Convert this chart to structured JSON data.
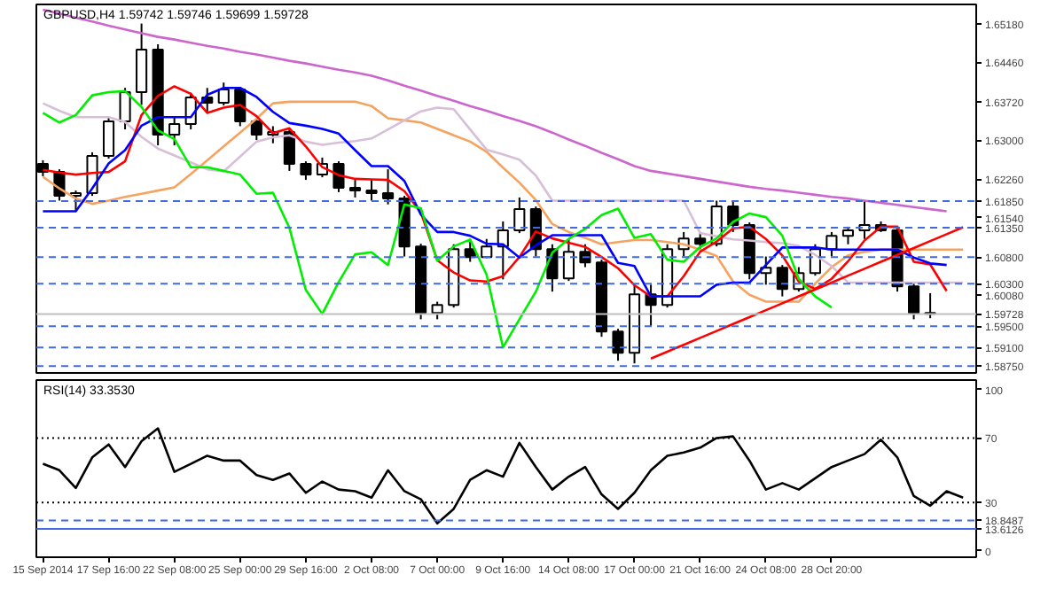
{
  "chart_data": [
    {
      "type": "candlestick",
      "title": "GBPUSD,H4 1.59742 1.59746 1.59699 1.59728",
      "categories": [
        null,
        null,
        null,
        null,
        null,
        null,
        null,
        null,
        null,
        null,
        null,
        null,
        null,
        null,
        null,
        null,
        null,
        null,
        null,
        null,
        null,
        null,
        null,
        null,
        null,
        null,
        null,
        null,
        null,
        null,
        null,
        null,
        null,
        null,
        null,
        null,
        null,
        null,
        null,
        null,
        null,
        null,
        null,
        null,
        null,
        null,
        null,
        null,
        null,
        null,
        null,
        null,
        null,
        null,
        null,
        null,
        null
      ],
      "ohlc": [
        [
          1.6255,
          1.6262,
          1.6232,
          1.624
        ],
        [
          1.624,
          1.6245,
          1.6186,
          1.6195
        ],
        [
          1.6195,
          1.6205,
          1.6166,
          1.62
        ],
        [
          1.62,
          1.6277,
          1.6195,
          1.627
        ],
        [
          1.627,
          1.6343,
          1.6265,
          1.6335
        ],
        [
          1.6335,
          1.6398,
          1.632,
          1.639
        ],
        [
          1.639,
          1.6519,
          1.6366,
          1.647
        ],
        [
          1.647,
          1.648,
          1.629,
          1.631
        ],
        [
          1.631,
          1.6343,
          1.629,
          1.633
        ],
        [
          1.633,
          1.6389,
          1.632,
          1.638
        ],
        [
          1.638,
          1.6398,
          1.635,
          1.637
        ],
        [
          1.637,
          1.6408,
          1.6365,
          1.6395
        ],
        [
          1.6395,
          1.64,
          1.6326,
          1.6335
        ],
        [
          1.6335,
          1.634,
          1.63,
          1.631
        ],
        [
          1.631,
          1.6326,
          1.6294,
          1.6315
        ],
        [
          1.6315,
          1.632,
          1.6242,
          1.6255
        ],
        [
          1.6255,
          1.626,
          1.6225,
          1.6235
        ],
        [
          1.6235,
          1.6267,
          1.623,
          1.6255
        ],
        [
          1.6255,
          1.626,
          1.6202,
          1.621
        ],
        [
          1.621,
          1.6225,
          1.6192,
          1.6205
        ],
        [
          1.6205,
          1.6225,
          1.6186,
          1.62
        ],
        [
          1.62,
          1.6245,
          1.6179,
          1.619
        ],
        [
          1.619,
          1.6195,
          1.6081,
          1.61
        ],
        [
          1.61,
          1.6105,
          1.5963,
          1.5975
        ],
        [
          1.5975,
          1.5996,
          1.5963,
          1.599
        ],
        [
          1.599,
          1.6104,
          1.5985,
          1.6095
        ],
        [
          1.6095,
          1.6114,
          1.6071,
          1.608
        ],
        [
          1.608,
          1.6114,
          1.6078,
          1.61
        ],
        [
          1.61,
          1.6147,
          1.6038,
          1.613
        ],
        [
          1.613,
          1.6192,
          1.6125,
          1.617
        ],
        [
          1.617,
          1.6175,
          1.6081,
          1.6095
        ],
        [
          1.6095,
          1.6104,
          1.6015,
          1.604
        ],
        [
          1.604,
          1.6114,
          1.6035,
          1.609
        ],
        [
          1.609,
          1.6104,
          1.6061,
          1.607
        ],
        [
          1.607,
          1.6075,
          1.593,
          1.594
        ],
        [
          1.594,
          1.5945,
          1.5885,
          1.59
        ],
        [
          1.59,
          1.6028,
          1.588,
          1.601
        ],
        [
          1.601,
          1.6028,
          1.595,
          1.599
        ],
        [
          1.599,
          1.6104,
          1.5985,
          1.6095
        ],
        [
          1.6095,
          1.6127,
          1.6081,
          1.6115
        ],
        [
          1.6115,
          1.6127,
          1.6094,
          1.6105
        ],
        [
          1.6105,
          1.6186,
          1.61,
          1.6175
        ],
        [
          1.6175,
          1.6186,
          1.6127,
          1.614
        ],
        [
          1.614,
          1.6145,
          1.6038,
          1.605
        ],
        [
          1.605,
          1.6081,
          1.6028,
          1.606
        ],
        [
          1.606,
          1.6065,
          1.6006,
          1.602
        ],
        [
          1.602,
          1.6061,
          1.6015,
          1.605
        ],
        [
          1.605,
          1.6104,
          1.6045,
          1.6095
        ],
        [
          1.6095,
          1.6127,
          1.6081,
          1.612
        ],
        [
          1.612,
          1.6137,
          1.6104,
          1.613
        ],
        [
          1.613,
          1.6186,
          1.6114,
          1.614
        ],
        [
          1.614,
          1.6147,
          1.6127,
          1.613
        ],
        [
          1.613,
          1.6137,
          1.6015,
          1.6025
        ],
        [
          1.6025,
          1.603,
          1.5963,
          1.5975
        ],
        [
          1.5975,
          1.6012,
          1.5965,
          1.5973
        ],
        null,
        null
      ],
      "series": [
        {
          "type": "line",
          "color": "#cc66cc",
          "values": [
            1.6545,
            1.6538,
            1.653,
            1.6523,
            1.6515,
            1.6508,
            1.6501,
            1.6494,
            1.6489,
            1.6483,
            1.6477,
            1.6472,
            1.6466,
            1.6461,
            1.6455,
            1.6449,
            1.6444,
            1.6438,
            1.6432,
            1.6427,
            1.6421,
            1.6412,
            1.6402,
            1.6393,
            1.6383,
            1.6374,
            1.6364,
            1.6355,
            1.6345,
            1.6336,
            1.6326,
            1.6314,
            1.6301,
            1.6289,
            1.6276,
            1.6264,
            1.6251,
            1.6242,
            1.6237,
            1.6232,
            1.6227,
            1.6222,
            1.6217,
            1.6212,
            1.6208,
            1.6205,
            1.6201,
            1.6197,
            1.6193,
            1.619,
            1.6186,
            1.6182,
            1.6178,
            1.6174,
            1.617,
            1.6166,
            null
          ]
        },
        {
          "type": "line",
          "color": "#f4a460",
          "values": [
            1.6231,
            1.6209,
            1.619,
            1.618,
            1.6186,
            1.6193,
            1.6199,
            1.6205,
            1.6211,
            1.6236,
            1.6262,
            1.6288,
            1.6314,
            1.634,
            1.6369,
            1.6372,
            1.6372,
            1.6372,
            1.6372,
            1.6372,
            1.6364,
            1.6341,
            1.6337,
            1.6333,
            1.6321,
            1.6309,
            1.6297,
            1.6278,
            1.6248,
            1.622,
            1.6187,
            1.6142,
            1.6127,
            1.6116,
            1.6104,
            1.6108,
            1.6112,
            1.6112,
            1.6108,
            1.6104,
            1.6094,
            1.6082,
            1.6034,
            1.6009,
            1.5996,
            1.5996,
            1.5996,
            1.603,
            1.6061,
            1.6083,
            1.609,
            1.6094,
            1.6094,
            1.6094,
            1.6094,
            1.6094,
            1.6094
          ]
        },
        {
          "type": "line",
          "color": "#d8bfd8",
          "values": [
            1.6369,
            1.6355,
            1.6343,
            1.6343,
            1.6343,
            1.6334,
            1.6306,
            1.6284,
            1.6271,
            1.6258,
            1.6245,
            1.6241,
            1.6269,
            1.6297,
            1.6305,
            1.6309,
            1.6297,
            1.6291,
            1.6295,
            1.6298,
            1.6303,
            1.632,
            1.6337,
            1.6354,
            1.6361,
            1.6358,
            1.632,
            1.6282,
            1.6273,
            1.6263,
            1.6233,
            1.6186,
            1.6186,
            1.6186,
            1.6186,
            1.6186,
            1.6186,
            1.6186,
            1.6186,
            1.6186,
            1.6125,
            1.6119,
            1.6113,
            1.6111,
            1.6108,
            1.6106,
            1.6101,
            1.6084,
            1.6063,
            1.6032,
            1.6032,
            1.6032,
            1.6032,
            1.6032,
            1.6032,
            1.6032,
            1.6032
          ]
        },
        {
          "type": "line",
          "color": "#ff0000",
          "values": [
            1.6244,
            1.6239,
            1.6235,
            1.6238,
            1.624,
            1.626,
            1.6347,
            1.6383,
            1.6401,
            1.6387,
            1.6351,
            1.6361,
            1.6366,
            1.6345,
            1.6313,
            1.6322,
            1.6288,
            1.6249,
            1.6234,
            1.6227,
            1.6226,
            1.6225,
            1.6204,
            1.6164,
            1.6074,
            1.6051,
            1.6036,
            1.6034,
            1.6044,
            1.608,
            1.6128,
            1.6115,
            1.6107,
            1.6099,
            1.608,
            1.6059,
            1.6027,
            1.6006,
            1.6006,
            1.6044,
            1.609,
            1.6109,
            1.6134,
            1.6137,
            1.6114,
            1.6083,
            1.6034,
            1.602,
            1.6039,
            1.6072,
            1.6111,
            1.6137,
            1.6137,
            1.6071,
            1.6066,
            1.6016,
            null
          ]
        },
        {
          "type": "line",
          "color": "#0000ff",
          "values": [
            1.6166,
            1.6166,
            1.6166,
            1.6209,
            1.6256,
            1.6281,
            1.6327,
            1.6343,
            1.6343,
            1.6343,
            1.6385,
            1.6398,
            1.6398,
            1.6381,
            1.6353,
            1.6332,
            1.6327,
            1.6321,
            1.6312,
            1.6281,
            1.6251,
            1.6251,
            1.6223,
            1.616,
            1.6127,
            1.6127,
            1.612,
            1.6105,
            1.6104,
            1.6079,
            1.6102,
            1.6121,
            1.6121,
            1.6121,
            1.6121,
            1.6069,
            1.6063,
            1.6006,
            1.6006,
            1.6006,
            1.6006,
            1.6028,
            1.6032,
            1.6032,
            1.6065,
            1.6098,
            1.6098,
            1.6098,
            1.6094,
            1.6094,
            1.6094,
            1.6094,
            1.6094,
            1.6079,
            1.6068,
            1.6065,
            null
          ]
        },
        {
          "type": "line",
          "color": "#00ee00",
          "values": [
            1.6351,
            1.6333,
            1.6347,
            1.6384,
            1.639,
            1.6392,
            1.6362,
            1.6318,
            1.6302,
            1.6249,
            1.6249,
            1.6242,
            1.6235,
            1.6199,
            1.6201,
            1.6135,
            1.6018,
            1.5973,
            1.6033,
            1.6085,
            1.6089,
            1.6065,
            1.6179,
            1.6172,
            1.6073,
            1.61,
            1.6113,
            1.6047,
            1.591,
            1.5963,
            1.6015,
            1.6088,
            1.6114,
            1.6133,
            1.6159,
            1.6171,
            1.6116,
            1.6123,
            1.6075,
            1.6071,
            1.6099,
            1.6115,
            1.6146,
            1.6162,
            1.6155,
            1.612,
            1.6039,
            1.6006,
            1.5985,
            null,
            null,
            null,
            null,
            null,
            null,
            null,
            null
          ]
        },
        {
          "type": "line",
          "color": "#ff0000",
          "values": [
            null,
            null,
            null,
            null,
            null,
            null,
            null,
            null,
            null,
            null,
            null,
            null,
            null,
            null,
            null,
            null,
            null,
            null,
            null,
            null,
            null,
            null,
            null,
            null,
            null,
            null,
            null,
            null,
            null,
            null,
            null,
            null,
            null,
            null,
            null,
            null,
            null,
            1.5889,
            1.5902,
            1.5915,
            1.5928,
            1.5941,
            1.5954,
            1.5967,
            1.598,
            1.5993,
            1.6006,
            1.6019,
            1.6032,
            1.6045,
            1.6058,
            1.6071,
            1.6084,
            1.6097,
            1.611,
            1.6123,
            1.6136
          ]
        }
      ],
      "ylim": [
        1.5862,
        1.6555
      ],
      "yticks": [
        {
          "value": 1.6518,
          "label": "1.65180"
        },
        {
          "value": 1.6446,
          "label": "1.64460"
        },
        {
          "value": 1.6372,
          "label": "1.63720"
        },
        {
          "value": 1.63,
          "label": "1.63000"
        },
        {
          "value": 1.6226,
          "label": "1.62260"
        },
        {
          "value": 1.6154,
          "label": "1.61540"
        },
        {
          "value": 1.6008,
          "label": "1.60080"
        }
      ],
      "tick_labels": "y",
      "grid": false,
      "ref_lines": [
        {
          "axis": "y",
          "value": 1.6185,
          "label": "1.61850",
          "color": "#4169e1",
          "line_style": "dashed"
        },
        {
          "axis": "y",
          "value": 1.6135,
          "label": "1.61350",
          "color": "#4169e1",
          "line_style": "dashed"
        },
        {
          "axis": "y",
          "value": 1.608,
          "label": "1.60800",
          "color": "#4169e1",
          "line_style": "dashed"
        },
        {
          "axis": "y",
          "value": 1.603,
          "label": "1.60300",
          "color": "#4169e1",
          "line_style": "dashed"
        },
        {
          "axis": "y",
          "value": 1.59728,
          "label": "1.59728",
          "color": "#c0c0c0",
          "line_style": "solid"
        },
        {
          "axis": "y",
          "value": 1.595,
          "label": "1.59500",
          "color": "#4169e1",
          "line_style": "dashed"
        },
        {
          "axis": "y",
          "value": 1.591,
          "label": "1.59100",
          "color": "#4169e1",
          "line_style": "dashed"
        },
        {
          "axis": "y",
          "value": 1.5875,
          "label": "1.58750",
          "color": "#4169e1",
          "line_style": "dashed"
        }
      ]
    },
    {
      "type": "line",
      "title": "RSI(14) 33.3530",
      "categories": [
        "15 Sep 2014",
        null,
        null,
        null,
        "17 Sep 16:00",
        null,
        null,
        null,
        "22 Sep 08:00",
        null,
        null,
        null,
        "25 Sep 00:00",
        null,
        null,
        null,
        "29 Sep 16:00",
        null,
        null,
        null,
        "2 Oct 08:00",
        null,
        null,
        null,
        "7 Oct 00:00",
        null,
        null,
        null,
        "9 Oct 16:00",
        null,
        null,
        null,
        "14 Oct 08:00",
        null,
        null,
        null,
        "17 Oct 00:00",
        null,
        null,
        null,
        "21 Oct 16:00",
        null,
        null,
        null,
        "24 Oct 08:00",
        null,
        null,
        null,
        "28 Oct 20:00",
        null,
        null,
        null,
        null,
        null,
        null,
        null,
        null
      ],
      "series": [
        {
          "color": "#000000",
          "values": [
            54,
            50,
            39,
            58,
            66,
            52,
            68,
            76,
            49,
            54,
            59,
            56,
            56,
            47,
            44,
            48,
            36,
            43,
            38,
            37,
            33,
            50,
            37,
            32,
            17,
            26,
            44,
            50,
            46,
            67,
            52,
            38,
            46,
            52,
            35,
            26,
            36,
            50,
            59,
            61,
            64,
            70,
            71,
            56,
            38,
            42,
            38,
            45,
            52,
            56,
            60,
            69,
            58,
            34,
            28,
            37,
            33
          ]
        }
      ],
      "ylim": [
        -4,
        106
      ],
      "yticks": [
        0,
        30,
        70,
        100
      ],
      "grid": false,
      "ref_lines": [
        {
          "axis": "y",
          "value": 70,
          "color": "#000000",
          "line_style": "dotted"
        },
        {
          "axis": "y",
          "value": 30,
          "color": "#000000",
          "line_style": "dotted"
        },
        {
          "axis": "y",
          "value": 18.8487,
          "label": "18.8487",
          "color": "#4169e1",
          "line_style": "dashed"
        },
        {
          "axis": "y",
          "value": 13.6126,
          "label": "13.6126",
          "color": "#4169e1",
          "line_style": "solid"
        }
      ]
    }
  ]
}
